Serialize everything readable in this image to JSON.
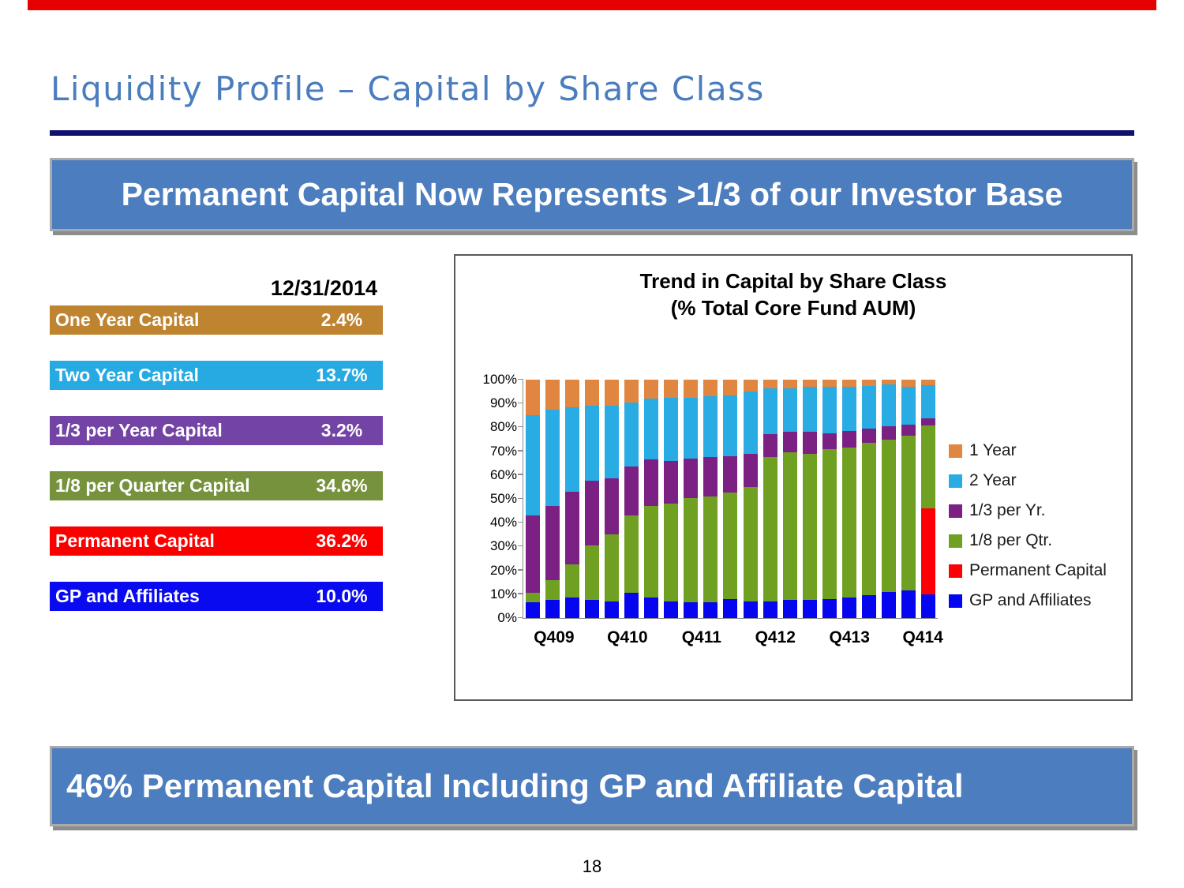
{
  "header": {
    "title": "Liquidity Profile – Capital by Share Class"
  },
  "banners": {
    "top": "Permanent Capital Now Represents >1/3 of our Investor Base",
    "bottom": "46% Permanent Capital Including GP and Affiliate Capital"
  },
  "table": {
    "date_header": "12/31/2014",
    "rows": [
      {
        "label": "One Year Capital",
        "value": "2.4%",
        "color": "#be8430"
      },
      {
        "label": "Two Year Capital",
        "value": "13.7%",
        "color": "#27aae1"
      },
      {
        "label": "1/3 per Year Capital",
        "value": "3.2%",
        "color": "#7443a6"
      },
      {
        "label": "1/8 per Quarter Capital",
        "value": "34.6%",
        "color": "#76923c"
      },
      {
        "label": "Permanent Capital",
        "value": "36.2%",
        "color": "#fc0000"
      },
      {
        "label": "GP and Affiliates",
        "value": "10.0%",
        "color": "#0a0af0"
      }
    ]
  },
  "chart_data": {
    "type": "bar",
    "stacked": true,
    "title": "Trend in Capital by Share Class",
    "subtitle": "(% Total Core Fund AUM)",
    "ylim": [
      0,
      100
    ],
    "grid": false,
    "legend_position": "right",
    "y_ticks": [
      "0%",
      "10%",
      "20%",
      "30%",
      "40%",
      "50%",
      "60%",
      "70%",
      "80%",
      "90%",
      "100%"
    ],
    "x_labels": [
      "Q409",
      "Q410",
      "Q411",
      "Q412",
      "Q413",
      "Q414"
    ],
    "x_label_positions_pct": [
      7.6,
      25.3,
      43.2,
      61.0,
      78.9,
      96.6
    ],
    "series_order_bottom_to_top": [
      "GP and Affiliates",
      "Permanent Capital",
      "1/8 per Qtr.",
      "1/3 per Yr.",
      "2 Year",
      "1 Year"
    ],
    "series_colors": {
      "GP and Affiliates": "#0505f0",
      "Permanent Capital": "#fb0005",
      "1/8 per Qtr.": "#6fa022",
      "1/3 per Yr.": "#7b2183",
      "2 Year": "#29abe3",
      "1 Year": "#e08640"
    },
    "legend": [
      {
        "label": "1 Year",
        "color": "#e08640"
      },
      {
        "label": "2 Year",
        "color": "#29abe3"
      },
      {
        "label": "1/3 per Yr.",
        "color": "#7b2183"
      },
      {
        "label": "1/8 per Qtr.",
        "color": "#6fa022"
      },
      {
        "label": "Permanent Capital",
        "color": "#fb0005"
      },
      {
        "label": "GP and Affiliates",
        "color": "#0505f0"
      }
    ],
    "bars_note": "each bar = [GP and Affiliates, Permanent Capital, 1/8 per Qtr., 1/3 per Yr., 2 Year, 1 Year] in % of total, quarterly Q409-Q414",
    "bars": [
      [
        6.5,
        0,
        4.0,
        32.5,
        42.0,
        15.0
      ],
      [
        7.5,
        0,
        8.5,
        31.0,
        40.5,
        12.5
      ],
      [
        8.5,
        0,
        14.0,
        30.5,
        35.5,
        11.5
      ],
      [
        7.5,
        0,
        23.0,
        27.0,
        31.5,
        11.0
      ],
      [
        7.0,
        0,
        28.0,
        23.5,
        30.5,
        11.0
      ],
      [
        10.5,
        0,
        32.5,
        20.5,
        27.0,
        9.5
      ],
      [
        8.5,
        0,
        38.5,
        19.5,
        25.5,
        8.0
      ],
      [
        7.0,
        0,
        41.0,
        18.0,
        26.5,
        7.5
      ],
      [
        6.5,
        0,
        44.0,
        16.5,
        25.5,
        7.5
      ],
      [
        6.5,
        0,
        44.5,
        16.5,
        25.5,
        7.0
      ],
      [
        8.0,
        0,
        44.5,
        15.5,
        25.5,
        6.5
      ],
      [
        7.0,
        0,
        48.0,
        14.0,
        26.0,
        5.0
      ],
      [
        7.0,
        0,
        60.5,
        9.5,
        19.5,
        3.5
      ],
      [
        7.5,
        0,
        62.0,
        8.5,
        18.5,
        3.5
      ],
      [
        7.5,
        0,
        61.5,
        9.0,
        19.0,
        3.0
      ],
      [
        8.0,
        0,
        63.0,
        6.5,
        19.5,
        3.0
      ],
      [
        8.5,
        0,
        63.0,
        7.0,
        18.5,
        3.0
      ],
      [
        9.5,
        0,
        64.0,
        6.0,
        18.0,
        2.5
      ],
      [
        11.0,
        0,
        64.0,
        5.5,
        17.5,
        2.0
      ],
      [
        11.5,
        0,
        65.0,
        4.5,
        16.0,
        3.0
      ],
      [
        10.0,
        36.2,
        34.6,
        3.2,
        13.7,
        2.4
      ]
    ]
  },
  "page": {
    "number": "18"
  }
}
